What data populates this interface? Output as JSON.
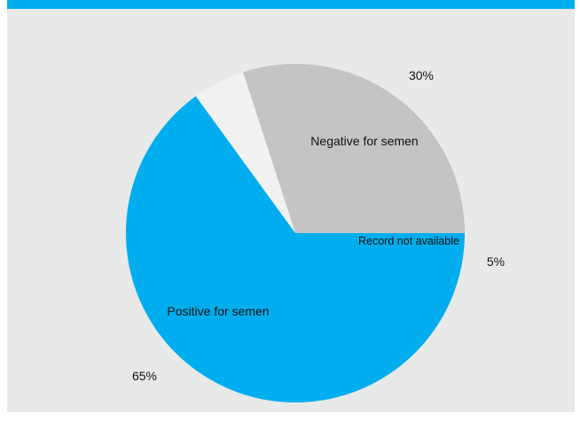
{
  "colors": {
    "accent": "#00aeef",
    "background": "#e8e9e9",
    "positive": "#00aeef",
    "negative": "#c4c4c4",
    "unavailable": "#f1f1f1"
  },
  "chart_data": {
    "type": "pie",
    "title": "",
    "categories": [
      "Negative for semen",
      "Record not available",
      "Positive for semen"
    ],
    "values": [
      30,
      5,
      65
    ],
    "percent_labels": [
      "30%",
      "5%",
      "65%"
    ],
    "start_angle_deg": 0,
    "direction": "counterclockwise",
    "legend": "none (labels on slices)"
  }
}
